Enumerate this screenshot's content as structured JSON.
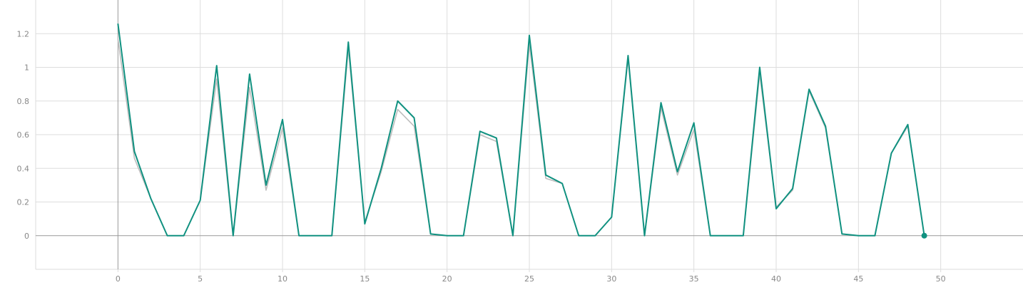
{
  "chart_data": {
    "type": "line",
    "title": "",
    "xlabel": "",
    "ylabel": "",
    "xlim": [
      -5,
      55
    ],
    "ylim": [
      -0.2,
      1.4
    ],
    "x_ticks": [
      0,
      5,
      10,
      15,
      20,
      25,
      30,
      35,
      40,
      45,
      50
    ],
    "y_ticks": [
      0,
      0.2,
      0.4,
      0.6,
      0.8,
      1,
      1.2
    ],
    "y_tick_labels": [
      "0",
      "0.2",
      "0.4",
      "0.6",
      "0.8",
      "1",
      "1.2"
    ],
    "grid": true,
    "series": [
      {
        "role": "raw",
        "color": "#bdbdbd",
        "x": [
          0,
          1,
          2,
          3,
          4,
          5,
          6,
          7,
          8,
          9,
          10,
          11,
          12,
          13,
          14,
          15,
          16,
          17,
          18,
          19,
          20,
          21,
          22,
          23,
          24,
          25,
          26,
          27,
          28,
          29,
          30,
          31,
          32,
          33,
          34,
          35,
          36,
          37,
          38,
          39,
          40,
          41,
          42,
          43,
          44,
          45,
          46,
          47,
          48,
          49
        ],
        "y": [
          1.17,
          0.46,
          0.22,
          0,
          0,
          0.21,
          0.93,
          0,
          0.88,
          0.27,
          0.64,
          0,
          0,
          0,
          1.11,
          0.08,
          0.38,
          0.75,
          0.65,
          0.01,
          0,
          0,
          0.6,
          0.56,
          0,
          1.14,
          0.34,
          0.31,
          0,
          0,
          0.11,
          1.05,
          0,
          0.76,
          0.36,
          0.63,
          0,
          0,
          0,
          0.96,
          0.17,
          0.27,
          0.86,
          0.64,
          0.01,
          0,
          0,
          0.49,
          0.65,
          0
        ]
      },
      {
        "role": "smoothed",
        "color": "#109180",
        "x": [
          0,
          1,
          2,
          3,
          4,
          5,
          6,
          7,
          8,
          9,
          10,
          11,
          12,
          13,
          14,
          15,
          16,
          17,
          18,
          19,
          20,
          21,
          22,
          23,
          24,
          25,
          26,
          27,
          28,
          29,
          30,
          31,
          32,
          33,
          34,
          35,
          36,
          37,
          38,
          39,
          40,
          41,
          42,
          43,
          44,
          45,
          46,
          47,
          48,
          49
        ],
        "y": [
          1.26,
          0.5,
          0.22,
          0,
          0,
          0.21,
          1.01,
          0,
          0.96,
          0.3,
          0.69,
          0,
          0,
          0,
          1.15,
          0.07,
          0.4,
          0.8,
          0.7,
          0.01,
          0,
          0,
          0.62,
          0.58,
          0,
          1.19,
          0.36,
          0.31,
          0,
          0,
          0.11,
          1.07,
          0,
          0.79,
          0.38,
          0.67,
          0,
          0,
          0,
          1,
          0.16,
          0.28,
          0.87,
          0.65,
          0.01,
          0,
          0,
          0.49,
          0.66,
          0
        ]
      }
    ],
    "marker": {
      "x": 49,
      "y": 0,
      "color": "#109180"
    }
  }
}
